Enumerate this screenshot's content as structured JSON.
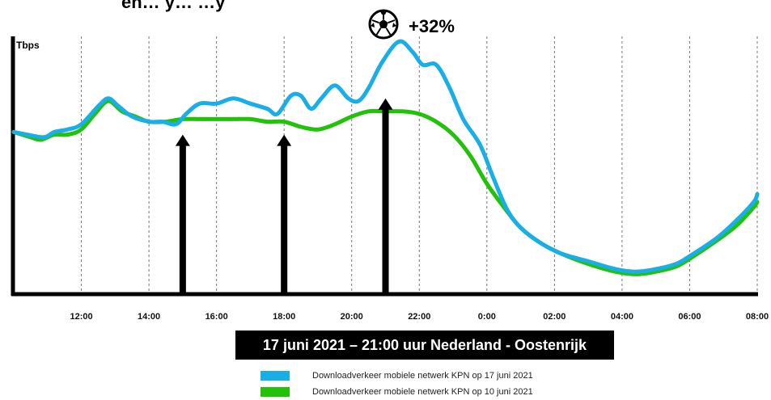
{
  "header_clipped_text": "en… y…                                …y",
  "annotation": {
    "icon": "soccer-ball-icon",
    "text": "+32%"
  },
  "banner": "17 juni 2021 – 21:00 uur Nederland - Oostenrijk",
  "colors": {
    "series_2021_06_17": "#1aaee8",
    "series_2021_06_10": "#22c10a",
    "axis": "#000000",
    "grid": "#777777"
  },
  "chart_data": {
    "type": "line",
    "ylabel": "Tbps",
    "xlabel": "",
    "x_tick_labels": [
      "12:00",
      "14:00",
      "16:00",
      "18:00",
      "20:00",
      "22:00",
      "0:00",
      "02:00",
      "04:00",
      "06:00",
      "08:00"
    ],
    "grid": "vertical-dashed",
    "legend_position": "bottom",
    "series": [
      {
        "name": "Downloadverkeer mobiele netwerk KPN op 17 juni 2021",
        "color": "#1aaee8",
        "points": [
          [
            10.0,
            0.63
          ],
          [
            10.4,
            0.62
          ],
          [
            10.9,
            0.61
          ],
          [
            11.2,
            0.63
          ],
          [
            11.6,
            0.64
          ],
          [
            12.0,
            0.66
          ],
          [
            12.5,
            0.73
          ],
          [
            12.8,
            0.76
          ],
          [
            13.1,
            0.73
          ],
          [
            13.5,
            0.69
          ],
          [
            14.0,
            0.67
          ],
          [
            14.4,
            0.67
          ],
          [
            14.8,
            0.66
          ],
          [
            15.1,
            0.7
          ],
          [
            15.5,
            0.74
          ],
          [
            16.0,
            0.74
          ],
          [
            16.5,
            0.76
          ],
          [
            17.0,
            0.74
          ],
          [
            17.5,
            0.72
          ],
          [
            17.8,
            0.7
          ],
          [
            18.2,
            0.77
          ],
          [
            18.5,
            0.77
          ],
          [
            18.8,
            0.72
          ],
          [
            19.1,
            0.76
          ],
          [
            19.5,
            0.81
          ],
          [
            19.9,
            0.76
          ],
          [
            20.2,
            0.75
          ],
          [
            20.5,
            0.8
          ],
          [
            20.9,
            0.9
          ],
          [
            21.4,
            0.98
          ],
          [
            21.8,
            0.94
          ],
          [
            22.1,
            0.89
          ],
          [
            22.5,
            0.89
          ],
          [
            22.9,
            0.8
          ],
          [
            23.3,
            0.68
          ],
          [
            23.8,
            0.58
          ],
          [
            24.2,
            0.45
          ],
          [
            24.6,
            0.33
          ],
          [
            25.0,
            0.26
          ],
          [
            25.6,
            0.2
          ],
          [
            26.2,
            0.16
          ],
          [
            27.0,
            0.13
          ],
          [
            27.8,
            0.1
          ],
          [
            28.4,
            0.09
          ],
          [
            29.0,
            0.1
          ],
          [
            29.6,
            0.12
          ],
          [
            30.0,
            0.15
          ],
          [
            30.8,
            0.22
          ],
          [
            31.4,
            0.29
          ],
          [
            31.9,
            0.36
          ],
          [
            32.0,
            0.39
          ]
        ]
      },
      {
        "name": "Downloadverkeer mobiele netwerk KPN op 10 juni 2021",
        "color": "#22c10a",
        "points": [
          [
            10.0,
            0.63
          ],
          [
            10.5,
            0.61
          ],
          [
            10.8,
            0.6
          ],
          [
            11.2,
            0.62
          ],
          [
            11.6,
            0.62
          ],
          [
            12.0,
            0.64
          ],
          [
            12.4,
            0.7
          ],
          [
            12.8,
            0.75
          ],
          [
            13.2,
            0.71
          ],
          [
            13.6,
            0.69
          ],
          [
            14.0,
            0.67
          ],
          [
            14.5,
            0.67
          ],
          [
            15.0,
            0.68
          ],
          [
            15.5,
            0.68
          ],
          [
            16.0,
            0.68
          ],
          [
            16.5,
            0.68
          ],
          [
            17.0,
            0.68
          ],
          [
            17.5,
            0.67
          ],
          [
            18.0,
            0.67
          ],
          [
            18.5,
            0.65
          ],
          [
            19.0,
            0.64
          ],
          [
            19.5,
            0.66
          ],
          [
            20.0,
            0.69
          ],
          [
            20.5,
            0.71
          ],
          [
            21.0,
            0.71
          ],
          [
            21.5,
            0.71
          ],
          [
            22.0,
            0.7
          ],
          [
            22.5,
            0.67
          ],
          [
            23.0,
            0.62
          ],
          [
            23.5,
            0.54
          ],
          [
            24.0,
            0.43
          ],
          [
            24.5,
            0.34
          ],
          [
            25.0,
            0.26
          ],
          [
            25.6,
            0.2
          ],
          [
            26.2,
            0.16
          ],
          [
            27.0,
            0.12
          ],
          [
            27.8,
            0.09
          ],
          [
            28.4,
            0.08
          ],
          [
            29.0,
            0.09
          ],
          [
            29.6,
            0.11
          ],
          [
            30.0,
            0.14
          ],
          [
            30.8,
            0.21
          ],
          [
            31.4,
            0.27
          ],
          [
            31.9,
            0.34
          ],
          [
            32.0,
            0.36
          ]
        ]
      }
    ],
    "event_arrows": [
      {
        "x": 15.0,
        "y": 0.62
      },
      {
        "x": 18.0,
        "y": 0.62
      },
      {
        "x": 21.0,
        "y": 0.76
      }
    ]
  }
}
